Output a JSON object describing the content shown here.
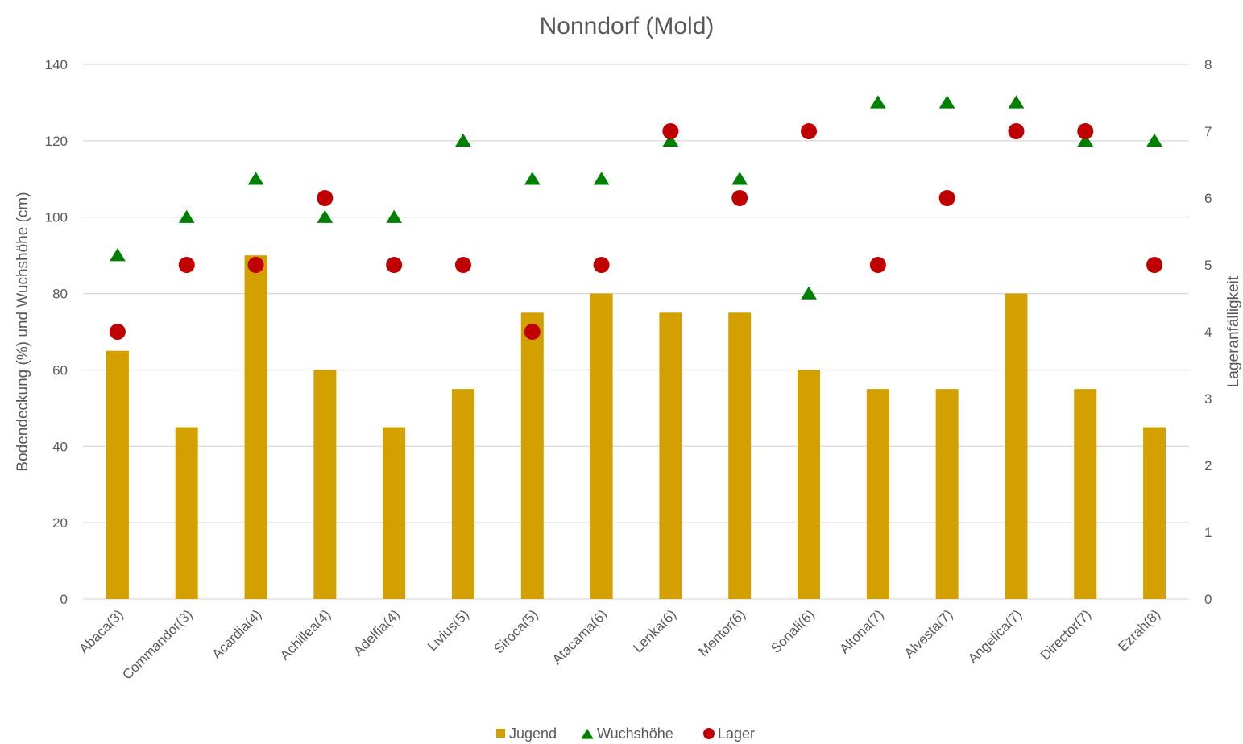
{
  "chart_data": {
    "type": "bar",
    "title": "Nonndorf (Mold)",
    "categories": [
      "Abaca(3)",
      "Commandor(3)",
      "Acardia(4)",
      "Achillea(4)",
      "Adelfia(4)",
      "Livius(5)",
      "Siroca(5)",
      "Atacama(6)",
      "Lenka(6)",
      "Mentor(6)",
      "Sonali(6)",
      "Altona(7)",
      "Alvesta(7)",
      "Angelica(7)",
      "Director(7)",
      "Ezrah(8)"
    ],
    "series": [
      {
        "name": "Jugend",
        "type": "bar",
        "axis": "left",
        "color": "#d4a000",
        "values": [
          65,
          45,
          90,
          60,
          45,
          55,
          75,
          80,
          75,
          75,
          60,
          55,
          55,
          80,
          55,
          45
        ]
      },
      {
        "name": "Wuchshöhe",
        "type": "scatter",
        "marker": "triangle",
        "axis": "left",
        "color": "#008000",
        "values": [
          90,
          100,
          110,
          100,
          100,
          120,
          110,
          110,
          120,
          110,
          80,
          130,
          130,
          130,
          120,
          120
        ]
      },
      {
        "name": "Lager",
        "type": "scatter",
        "marker": "circle",
        "axis": "right",
        "color": "#c00000",
        "values": [
          4,
          5,
          5,
          6,
          5,
          5,
          4,
          5,
          7,
          6,
          7,
          5,
          6,
          7,
          7,
          5
        ]
      }
    ],
    "ylabel": "Bodendeckung (%) und Wuchshöhe (cm)",
    "y2label": "Lageranfälligkeit",
    "ylim": [
      0,
      140
    ],
    "y2lim": [
      0,
      8
    ],
    "yticks": [
      "0",
      "20",
      "40",
      "60",
      "80",
      "100",
      "120",
      "140"
    ],
    "y2ticks": [
      "0",
      "1",
      "2",
      "3",
      "4",
      "5",
      "6",
      "7",
      "8"
    ],
    "grid": true,
    "legend": "bottom-center"
  }
}
